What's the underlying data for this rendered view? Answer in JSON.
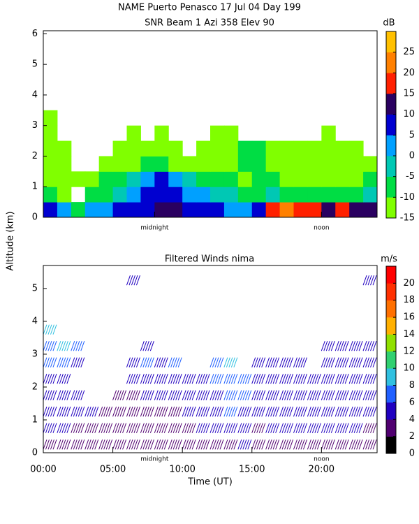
{
  "title": "NAME Puerto Penasco  17 Jul 04 Day 199",
  "ylabel": "Altitude (km)",
  "chart_data": [
    {
      "type": "heatmap",
      "title": "SNR Beam 1 Azi 358 Elev 90",
      "x": [
        0,
        1,
        2,
        3,
        4,
        5,
        6,
        7,
        8,
        9,
        10,
        11,
        12,
        13,
        14,
        15,
        16,
        17,
        18,
        19,
        20,
        21,
        22,
        23
      ],
      "y": [
        0,
        0.5,
        1,
        1.5,
        2,
        2.5,
        3
      ],
      "values": [
        [
          8,
          2,
          -8,
          0,
          3,
          5,
          5,
          8,
          10,
          10,
          8,
          8,
          5,
          3,
          3,
          8,
          18,
          20,
          18,
          15,
          12,
          15,
          12,
          10
        ],
        [
          -10,
          -12,
          null,
          -10,
          -8,
          -5,
          0,
          5,
          8,
          5,
          3,
          0,
          -3,
          -5,
          -8,
          -8,
          -5,
          -8,
          -8,
          -10,
          -8,
          -10,
          -8,
          -5
        ],
        [
          -12,
          -12,
          -13,
          -12,
          -10,
          -8,
          -5,
          3,
          5,
          0,
          -5,
          -8,
          -10,
          -10,
          -12,
          -10,
          -10,
          -12,
          -12,
          -13,
          -12,
          -12,
          -12,
          -10
        ],
        [
          -12,
          -13,
          null,
          null,
          -13,
          -13,
          -12,
          -10,
          -10,
          -12,
          -12,
          -13,
          -13,
          -12,
          -10,
          -10,
          -12,
          -12,
          -12,
          -12,
          -12,
          -13,
          -12,
          -12
        ],
        [
          -13,
          -13,
          null,
          null,
          null,
          -13,
          -13,
          -13,
          -13,
          -13,
          null,
          -13,
          -13,
          -12,
          -10,
          -10,
          -12,
          -12,
          -13,
          -12,
          -13,
          -13,
          -13,
          null
        ],
        [
          -13,
          null,
          null,
          null,
          null,
          null,
          -13,
          null,
          -13,
          null,
          null,
          null,
          -13,
          -13,
          null,
          null,
          null,
          null,
          null,
          null,
          -14,
          null,
          null,
          null
        ],
        [
          -13,
          null,
          null,
          null,
          null,
          null,
          null,
          null,
          null,
          null,
          null,
          null,
          null,
          null,
          null,
          null,
          null,
          null,
          null,
          null,
          null,
          null,
          null,
          null
        ]
      ],
      "xlim": [
        0,
        24
      ],
      "ylim": [
        0,
        6.1
      ],
      "yticks": [
        0,
        1,
        2,
        3,
        4,
        5,
        6
      ],
      "xticks": [
        {
          "value": 8,
          "label": "midnight"
        },
        {
          "value": 20,
          "label": "noon"
        }
      ],
      "colorbar": {
        "label": "dB",
        "lim": [
          -15,
          30
        ],
        "ticks": [
          -15,
          -10,
          -5,
          0,
          5,
          10,
          15,
          20,
          25
        ],
        "colors": [
          "#80ff00",
          "#00dd44",
          "#00c8b4",
          "#00a0ff",
          "#0000d0",
          "#2a0060",
          "#ff2000",
          "#ff8000",
          "#ffc000"
        ]
      }
    },
    {
      "type": "barbs",
      "title": "Filtered Winds nima",
      "xlabel": "Time (UT)",
      "x": [
        0,
        1,
        2,
        3,
        4,
        5,
        6,
        7,
        8,
        9,
        10,
        11,
        12,
        13,
        14,
        15,
        16,
        17,
        18,
        19,
        20,
        21,
        22,
        23
      ],
      "y": [
        0.25,
        0.75,
        1.25,
        1.75,
        2.25,
        2.75,
        3.25,
        3.75,
        5.25
      ],
      "values": [
        [
          3,
          3,
          2,
          3,
          2,
          2,
          2,
          3,
          2,
          2,
          3,
          3,
          3,
          3,
          4,
          3,
          3,
          3,
          3,
          3,
          3,
          3,
          3,
          3
        ],
        [
          4,
          4,
          3,
          3,
          3,
          2,
          3,
          3,
          2,
          3,
          3,
          4,
          4,
          5,
          4,
          3,
          4,
          4,
          4,
          4,
          4,
          4,
          4,
          3
        ],
        [
          4,
          4,
          4,
          4,
          3,
          3,
          3,
          3,
          3,
          3,
          4,
          4,
          5,
          6,
          5,
          4,
          4,
          5,
          5,
          4,
          4,
          5,
          5,
          4
        ],
        [
          4,
          5,
          4,
          null,
          null,
          3,
          3,
          4,
          4,
          4,
          5,
          4,
          5,
          7,
          6,
          5,
          5,
          5,
          5,
          5,
          5,
          5,
          4,
          4
        ],
        [
          5,
          5,
          null,
          null,
          null,
          null,
          4,
          4,
          4,
          5,
          5,
          5,
          6,
          7,
          6,
          5,
          5,
          5,
          5,
          5,
          5,
          5,
          5,
          5
        ],
        [
          6,
          6,
          5,
          null,
          null,
          null,
          5,
          6,
          5,
          6,
          null,
          null,
          6,
          8,
          null,
          5,
          5,
          4,
          4,
          null,
          5,
          5,
          5,
          5
        ],
        [
          7,
          8,
          6,
          null,
          null,
          null,
          null,
          5,
          null,
          null,
          null,
          null,
          null,
          null,
          null,
          null,
          null,
          null,
          null,
          null,
          4,
          5,
          5,
          5
        ],
        [
          9,
          null,
          null,
          null,
          null,
          null,
          null,
          null,
          null,
          null,
          null,
          null,
          null,
          null,
          null,
          null,
          null,
          null,
          null,
          null,
          null,
          null,
          null,
          null
        ],
        [
          null,
          null,
          null,
          null,
          null,
          null,
          4,
          null,
          null,
          null,
          null,
          null,
          null,
          null,
          null,
          null,
          null,
          null,
          null,
          null,
          null,
          null,
          null,
          4
        ]
      ],
      "xlim": [
        0,
        24
      ],
      "ylim": [
        0,
        5.7
      ],
      "yticks": [
        0,
        1,
        2,
        3,
        4,
        5
      ],
      "xticks": [
        {
          "value": 0,
          "label": "00:00"
        },
        {
          "value": 5,
          "label": "05:00"
        },
        {
          "value": 10,
          "label": "10:00"
        },
        {
          "value": 15,
          "label": "15:00"
        },
        {
          "value": 20,
          "label": "20:00"
        }
      ],
      "annotations": [
        {
          "value": 8,
          "label": "midnight"
        },
        {
          "value": 20,
          "label": "noon"
        }
      ],
      "colorbar": {
        "label": "m/s",
        "lim": [
          0,
          22
        ],
        "ticks": [
          0,
          2,
          4,
          6,
          8,
          10,
          12,
          14,
          16,
          18,
          20
        ],
        "colors": [
          "#000000",
          "#500070",
          "#2000c0",
          "#2060ff",
          "#30c0e0",
          "#30d070",
          "#90e000",
          "#ffb000",
          "#ff7000",
          "#ff3000",
          "#ff0000"
        ]
      }
    }
  ]
}
